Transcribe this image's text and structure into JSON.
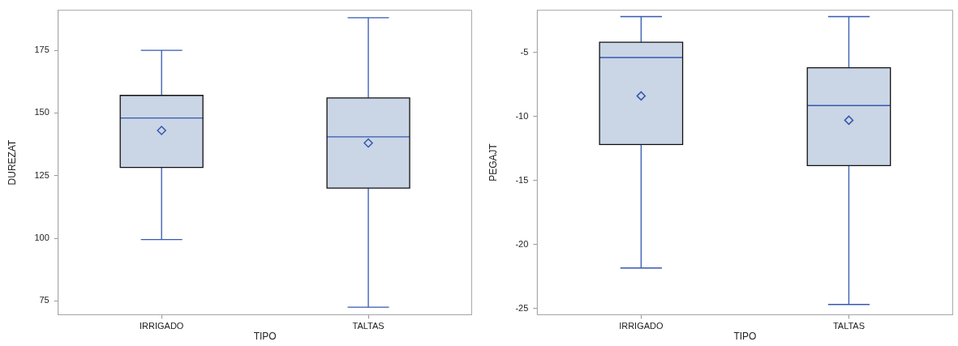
{
  "chart_data": [
    {
      "type": "box",
      "xlabel": "TIPO",
      "ylabel": "DUREZAT",
      "categories": [
        "IRRIGADO",
        "TALTAS"
      ],
      "color": "#cad5e5",
      "ylim": [
        69.5,
        191
      ],
      "yticks": [
        75,
        100,
        125,
        150,
        175
      ],
      "boxes": [
        {
          "low": 99.5,
          "q1": 128.3,
          "median": 148,
          "q3": 157,
          "high": 175,
          "mean": 143
        },
        {
          "low": 72.5,
          "q1": 120,
          "median": 140.5,
          "q3": 156,
          "high": 188,
          "mean": 138
        }
      ]
    },
    {
      "type": "box",
      "xlabel": "TIPO",
      "ylabel": "PEGAJT",
      "categories": [
        "IRRIGADO",
        "TALTAS"
      ],
      "color": "#cad5e5",
      "ylim": [
        -25.5,
        -1.7
      ],
      "yticks": [
        -25,
        -20,
        -15,
        -10,
        -5
      ],
      "boxes": [
        {
          "low": -21.85,
          "q1": -12.2,
          "median": -5.4,
          "q3": -4.2,
          "high": -2.2,
          "mean": -8.4
        },
        {
          "low": -24.7,
          "q1": -13.85,
          "median": -9.15,
          "q3": -6.2,
          "high": -2.2,
          "mean": -10.3
        }
      ]
    }
  ]
}
